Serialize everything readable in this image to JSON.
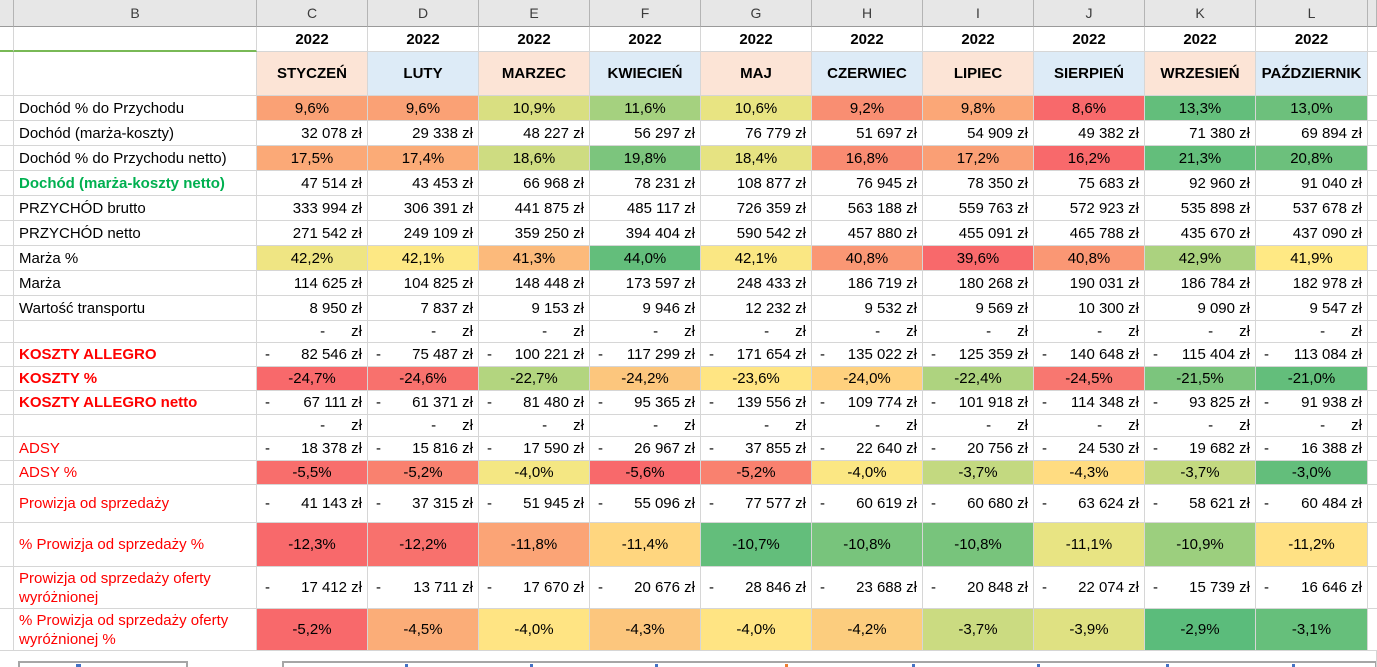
{
  "sheet": {
    "columns": {
      "letters": [
        "B",
        "C",
        "D",
        "E",
        "F",
        "G",
        "H",
        "I",
        "J",
        "K",
        "L"
      ],
      "year": "2022",
      "months": [
        {
          "label": "STYCZEŃ",
          "bg": "#FCE4D6"
        },
        {
          "label": "LUTY",
          "bg": "#DDEBF7"
        },
        {
          "label": "MARZEC",
          "bg": "#FCE4D6"
        },
        {
          "label": "KWIECIEŃ",
          "bg": "#DDEBF7"
        },
        {
          "label": "MAJ",
          "bg": "#FCE4D6"
        },
        {
          "label": "CZERWIEC",
          "bg": "#DDEBF7"
        },
        {
          "label": "LIPIEC",
          "bg": "#FCE4D6"
        },
        {
          "label": "SIERPIEŃ",
          "bg": "#DDEBF7"
        },
        {
          "label": "WRZESIEŃ",
          "bg": "#FCE4D6"
        },
        {
          "label": "PAŹDZIERNIK",
          "bg": "#DDEBF7"
        }
      ]
    },
    "accent_colors": {
      "scale_red": "#F8696B",
      "scale_yellow": "#FFEB84",
      "scale_green": "#63BE7B",
      "label_green": "#00B050",
      "label_red": "#FF0000",
      "underline_green": "#79B956"
    },
    "rows": [
      {
        "label": "Dochód % do Przychodu",
        "style": "normal",
        "type": "percent",
        "size": "r25",
        "values": [
          "9,6%",
          "9,6%",
          "10,9%",
          "11,6%",
          "10,6%",
          "9,2%",
          "9,8%",
          "8,6%",
          "13,3%",
          "13,0%"
        ],
        "colors": [
          "#FAA175",
          "#FAA175",
          "#D9DF81",
          "#A5D17F",
          "#E8E482",
          "#F98E72",
          "#FBA777",
          "#F8696B",
          "#63BE7B",
          "#6DC07C"
        ]
      },
      {
        "label": "Dochód (marża-koszty)",
        "style": "normal",
        "type": "currency",
        "size": "r25",
        "values": [
          "32 078 zł",
          "29 338 zł",
          "48 227 zł",
          "56 297 zł",
          "76 779 zł",
          "51 697 zł",
          "54 909 zł",
          "49 382 zł",
          "71 380 zł",
          "69 894 zł"
        ]
      },
      {
        "label": "Dochód % do Przychodu netto)",
        "style": "normal",
        "type": "percent",
        "size": "r25",
        "values": [
          "17,5%",
          "17,4%",
          "18,6%",
          "19,8%",
          "18,4%",
          "16,8%",
          "17,2%",
          "16,2%",
          "21,3%",
          "20,8%"
        ],
        "colors": [
          "#FBA977",
          "#FBAB77",
          "#CEDC81",
          "#7CC57D",
          "#E6E382",
          "#F98B71",
          "#FA9F75",
          "#F8696B",
          "#63BE7B",
          "#6CC07C"
        ]
      },
      {
        "label": "Dochód (marża-koszty netto)",
        "style": "green-bold",
        "type": "currency",
        "size": "r25",
        "values": [
          "47 514 zł",
          "43 453 zł",
          "66 968 zł",
          "78 231 zł",
          "108 877 zł",
          "76 945 zł",
          "78 350 zł",
          "75 683 zł",
          "92 960 zł",
          "91 040 zł"
        ]
      },
      {
        "label": "PRZYCHÓD brutto",
        "style": "normal",
        "type": "currency",
        "size": "r25",
        "values": [
          "333 994 zł",
          "306 391 zł",
          "441 875 zł",
          "485 117 zł",
          "726 359 zł",
          "563 188 zł",
          "559 763 zł",
          "572 923 zł",
          "535 898 zł",
          "537 678 zł"
        ]
      },
      {
        "label": "PRZYCHÓD netto",
        "style": "normal",
        "type": "currency",
        "size": "r25",
        "values": [
          "271 542 zł",
          "249 109 zł",
          "359 250 zł",
          "394 404 zł",
          "590 542 zł",
          "457 880 zł",
          "455 091 zł",
          "465 788 zł",
          "435 670 zł",
          "437 090 zł"
        ]
      },
      {
        "label": "Marża %",
        "style": "normal",
        "type": "percent",
        "size": "r25",
        "values": [
          "42,2%",
          "42,1%",
          "41,3%",
          "44,0%",
          "42,1%",
          "40,8%",
          "39,6%",
          "40,8%",
          "42,9%",
          "41,9%"
        ],
        "colors": [
          "#EFE583",
          "#FDE884",
          "#FCBA7B",
          "#63BE7B",
          "#FAE783",
          "#FA9774",
          "#F8696B",
          "#FA9774",
          "#ABD27F",
          "#FFE984"
        ]
      },
      {
        "label": "Marża",
        "style": "normal",
        "type": "currency",
        "size": "r25",
        "values": [
          "114 625 zł",
          "104 825 zł",
          "148 448 zł",
          "173 597 zł",
          "248 433 zł",
          "186 719 zł",
          "180 268 zł",
          "190 031 zł",
          "186 784 zł",
          "182 978 zł"
        ]
      },
      {
        "label": "Wartość transportu",
        "style": "normal",
        "type": "currency",
        "size": "r25",
        "values": [
          "8 950 zł",
          "7 837 zł",
          "9 153 zł",
          "9 946 zł",
          "12 232 zł",
          "9 532 zł",
          "9 569 zł",
          "10 300 zł",
          "9 090 zł",
          "9 547 zł"
        ]
      },
      {
        "label": "",
        "style": "normal",
        "type": "dash",
        "size": "r22",
        "values": [
          "zł",
          "zł",
          "zł",
          "zł",
          "zł",
          "zł",
          "zł",
          "zł",
          "zł",
          "zł"
        ]
      },
      {
        "label": "KOSZTY ALLEGRO",
        "style": "red-bold",
        "type": "currency-neg",
        "size": "r24",
        "values": [
          "82 546 zł",
          "75 487 zł",
          "100 221 zł",
          "117 299 zł",
          "171 654 zł",
          "135 022 zł",
          "125 359 zł",
          "140 648 zł",
          "115 404 zł",
          "113 084 zł"
        ]
      },
      {
        "label": "KOSZTY %",
        "style": "red-bold",
        "type": "percent",
        "size": "r24",
        "values": [
          "-24,7%",
          "-24,6%",
          "-22,7%",
          "-24,2%",
          "-23,6%",
          "-24,0%",
          "-22,4%",
          "-24,5%",
          "-21,5%",
          "-21,0%"
        ],
        "colors": [
          "#F8696B",
          "#F8716D",
          "#B3D57F",
          "#FCC67D",
          "#FFE583",
          "#FFD17E",
          "#AED37F",
          "#F87770",
          "#7CC57D",
          "#63BE7B"
        ]
      },
      {
        "label": "KOSZTY ALLEGRO netto",
        "style": "red-bold",
        "type": "currency-neg",
        "size": "r24",
        "values": [
          "67 111 zł",
          "61 371 zł",
          "81 480 zł",
          "95 365 zł",
          "139 556 zł",
          "109 774 zł",
          "101 918 zł",
          "114 348 zł",
          "93 825 zł",
          "91 938 zł"
        ]
      },
      {
        "label": "",
        "style": "normal",
        "type": "dash",
        "size": "r22",
        "values": [
          "zł",
          "zł",
          "zł",
          "zł",
          "zł",
          "zł",
          "zł",
          "zł",
          "zł",
          "zł"
        ]
      },
      {
        "label": "ADSY",
        "style": "red",
        "type": "currency-neg",
        "size": "r24",
        "values": [
          "18 378 zł",
          "15 816 zł",
          "17 590 zł",
          "26 967 zł",
          "37 855 zł",
          "22 640 zł",
          "20 756 zł",
          "24 530 zł",
          "19 682 zł",
          "16 388 zł"
        ]
      },
      {
        "label": "ADSY %",
        "style": "red",
        "type": "percent",
        "size": "r24",
        "values": [
          "-5,5%",
          "-5,2%",
          "-4,0%",
          "-5,6%",
          "-5,2%",
          "-4,0%",
          "-3,7%",
          "-4,3%",
          "-3,7%",
          "-3,0%"
        ],
        "colors": [
          "#F86E6C",
          "#F9816F",
          "#F4E783",
          "#F8696B",
          "#F9816F",
          "#FBE783",
          "#C3D980",
          "#FFDC81",
          "#C3D980",
          "#63BE7B"
        ]
      },
      {
        "label": "Prowizja od sprzedaży",
        "style": "red",
        "type": "currency-neg",
        "size": "r38",
        "values": [
          "41 143 zł",
          "37 315 zł",
          "51 945 zł",
          "55 096 zł",
          "77 577 zł",
          "60 619 zł",
          "60 680 zł",
          "63 624 zł",
          "58 621 zł",
          "60 484 zł"
        ]
      },
      {
        "label": "% Prowizja od sprzedaży %",
        "style": "red",
        "type": "percent",
        "size": "r44",
        "values": [
          "-12,3%",
          "-12,2%",
          "-11,8%",
          "-11,4%",
          "-10,7%",
          "-10,8%",
          "-10,8%",
          "-11,1%",
          "-10,9%",
          "-11,2%"
        ],
        "colors": [
          "#F8696B",
          "#F8716D",
          "#FBA476",
          "#FFD67F",
          "#63BE7B",
          "#78C47C",
          "#78C47C",
          "#E8E483",
          "#9CCF7E",
          "#FFE184"
        ]
      },
      {
        "label": "Prowizja od sprzedaży oferty wyróżnionej",
        "style": "red",
        "type": "currency-neg",
        "size": "r42",
        "values": [
          "17 412 zł",
          "13 711 zł",
          "17 670 zł",
          "20 676 zł",
          "28 846 zł",
          "23 688 zł",
          "20 848 zł",
          "22 074 zł",
          "15 739 zł",
          "16 646 zł"
        ]
      },
      {
        "label": "% Prowizja od sprzedaży oferty wyróżnionej %",
        "style": "red",
        "type": "percent",
        "size": "r42",
        "values": [
          "-5,2%",
          "-4,5%",
          "-4,0%",
          "-4,3%",
          "-4,0%",
          "-4,2%",
          "-3,7%",
          "-3,9%",
          "-2,9%",
          "-3,1%"
        ],
        "colors": [
          "#F8696B",
          "#FBAD78",
          "#FFE483",
          "#FCC67D",
          "#FFE483",
          "#FCCD7E",
          "#CBDB81",
          "#DFE182",
          "#5BBC7B",
          "#66BF7B"
        ]
      }
    ]
  }
}
